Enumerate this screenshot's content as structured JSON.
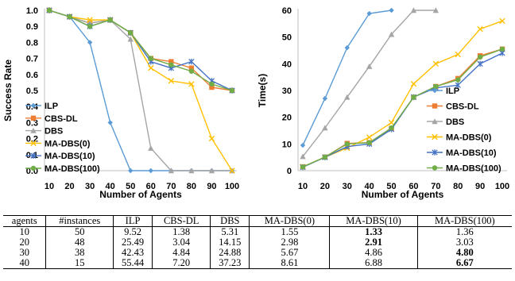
{
  "chart_data": [
    {
      "type": "line",
      "xlabel": "Number of Agents",
      "ylabel": "Success Rate",
      "x": [
        10,
        20,
        30,
        40,
        50,
        60,
        70,
        80,
        90,
        100
      ],
      "yticks": [
        "0.0",
        "0.1",
        "0.2",
        "0.3",
        "0.4",
        "0.5",
        "0.6",
        "0.7",
        "0.8",
        "0.9",
        "1.0"
      ],
      "ylim": [
        0,
        1.0
      ],
      "grid": false,
      "legend": "lower-left",
      "series": [
        {
          "name": "ILP",
          "color": "#5b9bd5",
          "marker": "diamond",
          "values": [
            1.0,
            0.96,
            0.8,
            0.3,
            0.0,
            0.0,
            0.0,
            0.0,
            0.0,
            0.0
          ]
        },
        {
          "name": "CBS-DL",
          "color": "#ed7d31",
          "marker": "square",
          "values": [
            1.0,
            0.96,
            0.92,
            0.94,
            0.86,
            0.7,
            0.68,
            0.64,
            0.52,
            0.5
          ]
        },
        {
          "name": "DBS",
          "color": "#a5a5a5",
          "marker": "triangle",
          "values": [
            1.0,
            0.96,
            0.92,
            0.94,
            0.82,
            0.14,
            0.0,
            0.0,
            0.0,
            0.0
          ]
        },
        {
          "name": "MA-DBS(0)",
          "color": "#ffc000",
          "marker": "x",
          "values": [
            1.0,
            0.96,
            0.94,
            0.94,
            0.86,
            0.64,
            0.56,
            0.54,
            0.2,
            0.0
          ]
        },
        {
          "name": "MA-DBS(10)",
          "color": "#4472c4",
          "marker": "star",
          "values": [
            1.0,
            0.96,
            0.9,
            0.94,
            0.86,
            0.68,
            0.64,
            0.68,
            0.56,
            0.5
          ]
        },
        {
          "name": "MA-DBS(100)",
          "color": "#70ad47",
          "marker": "circle",
          "values": [
            1.0,
            0.96,
            0.9,
            0.94,
            0.86,
            0.7,
            0.66,
            0.62,
            0.54,
            0.5
          ]
        }
      ]
    },
    {
      "type": "line",
      "xlabel": "Number of Agents",
      "ylabel": "Time(s)",
      "x": [
        10,
        20,
        30,
        40,
        50,
        60,
        70,
        80,
        90,
        100
      ],
      "yticks": [
        "0",
        "10",
        "20",
        "30",
        "40",
        "50",
        "60"
      ],
      "ylim": [
        0,
        60
      ],
      "grid": false,
      "legend": "lower-right",
      "series": [
        {
          "name": "ILP",
          "color": "#5b9bd5",
          "marker": "diamond",
          "values": [
            9.5,
            27,
            46,
            58.8,
            60,
            null,
            null,
            null,
            null,
            null
          ]
        },
        {
          "name": "CBS-DL",
          "color": "#ed7d31",
          "marker": "square",
          "values": [
            1.4,
            5.1,
            10.2,
            10.5,
            15.8,
            27.5,
            31.5,
            34.5,
            43,
            45.5
          ]
        },
        {
          "name": "DBS",
          "color": "#a5a5a5",
          "marker": "triangle",
          "values": [
            5.3,
            16,
            27.5,
            39,
            51,
            60,
            60,
            null,
            null,
            null
          ]
        },
        {
          "name": "MA-DBS(0)",
          "color": "#ffc000",
          "marker": "x",
          "values": [
            1.5,
            5.0,
            8.5,
            12.5,
            18,
            32.5,
            40,
            43.5,
            53,
            56
          ]
        },
        {
          "name": "MA-DBS(10)",
          "color": "#4472c4",
          "marker": "star",
          "values": [
            1.3,
            5.0,
            9.0,
            10.0,
            15.5,
            27.5,
            31,
            32,
            40,
            44
          ]
        },
        {
          "name": "MA-DBS(100)",
          "color": "#70ad47",
          "marker": "circle",
          "values": [
            1.4,
            5.1,
            10.0,
            10.5,
            16,
            27.5,
            31.5,
            34,
            42.5,
            45.5
          ]
        }
      ]
    },
    {
      "type": "table",
      "headers": [
        "agents",
        "#instances",
        "ILP",
        "CBS-DL",
        "DBS",
        "MA-DBS(0)",
        "MA-DBS(10)",
        "MA-DBS(100)"
      ],
      "rows": [
        {
          "cells": [
            "10",
            "50",
            "9.52",
            "1.38",
            "5.31",
            "1.55",
            "1.33",
            "1.36"
          ],
          "bold": [
            6
          ]
        },
        {
          "cells": [
            "20",
            "48",
            "25.49",
            "3.04",
            "14.15",
            "2.98",
            "2.91",
            "3.03"
          ],
          "bold": [
            6
          ]
        },
        {
          "cells": [
            "30",
            "38",
            "42.43",
            "4.84",
            "24.88",
            "5.67",
            "4.86",
            "4.80"
          ],
          "bold": [
            7
          ]
        },
        {
          "cells": [
            "40",
            "15",
            "55.44",
            "7.20",
            "37.23",
            "8.61",
            "6.88",
            "6.67"
          ],
          "bold": [
            7
          ]
        }
      ]
    }
  ]
}
